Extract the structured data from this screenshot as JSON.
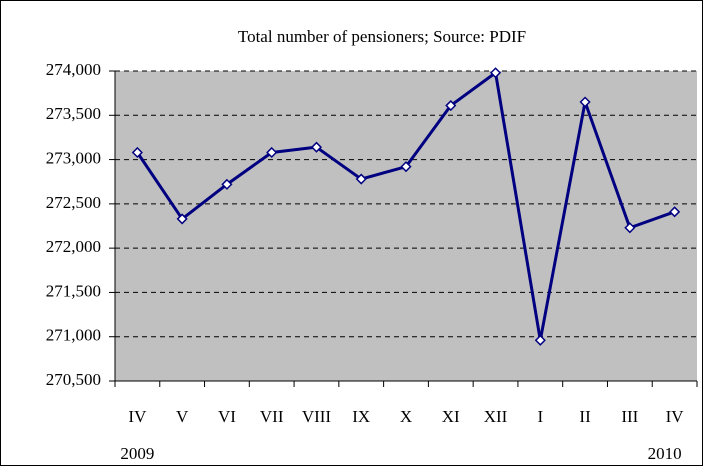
{
  "chart_data": {
    "type": "line",
    "title": "Total number of pensioners; Source: PDIF",
    "categories": [
      "IV",
      "V",
      "VI",
      "VII",
      "VIII",
      "IX",
      "X",
      "XI",
      "XII",
      "I",
      "II",
      "III",
      "IV"
    ],
    "annotations": [
      "2009",
      "2010"
    ],
    "series": [
      {
        "name": "Total number of pensioners",
        "color": "#000080",
        "values": [
          273080,
          272330,
          272720,
          273080,
          273140,
          272780,
          272920,
          273610,
          273980,
          270960,
          273650,
          272230,
          272410
        ]
      }
    ],
    "ylim": [
      270500,
      274000
    ],
    "yticks": [
      {
        "value": 270500,
        "label": "270,500"
      },
      {
        "value": 271000,
        "label": "271,000"
      },
      {
        "value": 271500,
        "label": "271,500"
      },
      {
        "value": 272000,
        "label": "272,000"
      },
      {
        "value": 272500,
        "label": "272,500"
      },
      {
        "value": 273000,
        "label": "273,000"
      },
      {
        "value": 273500,
        "label": "273,500"
      },
      {
        "value": 274000,
        "label": "274,000"
      }
    ],
    "grid": true,
    "plot_background": "#c0c0c0"
  }
}
